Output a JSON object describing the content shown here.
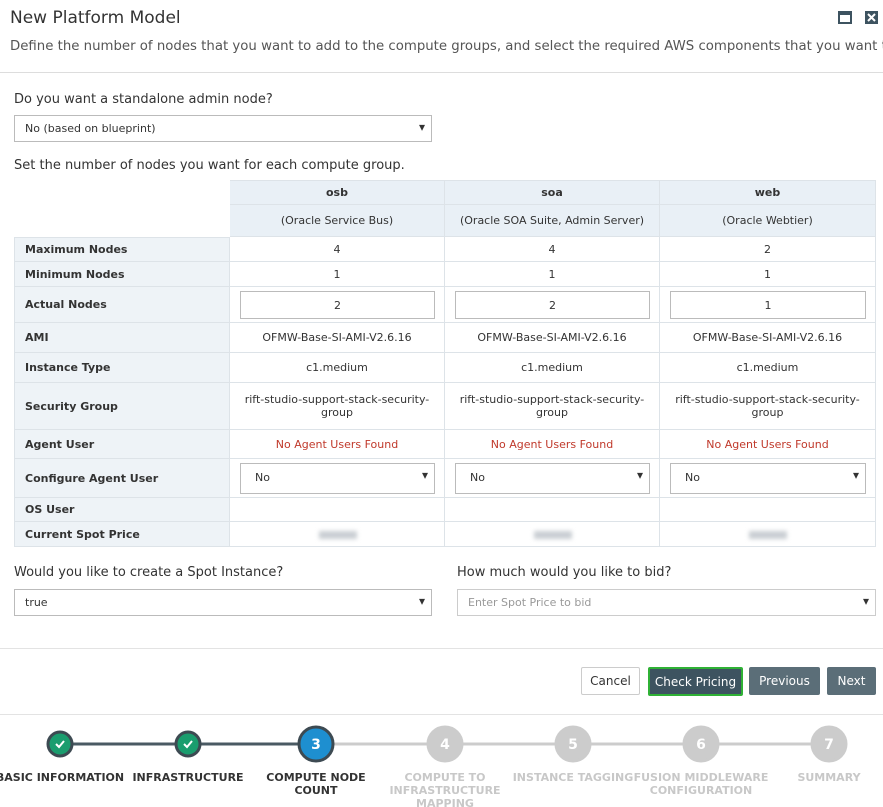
{
  "header": {
    "title": "New Platform Model",
    "description": "Define the number of nodes that you want to add to the compute groups, and select the required AWS components that you want to use."
  },
  "admin_node": {
    "label": "Do you want a standalone admin node?",
    "value": "No (based on blueprint)"
  },
  "groups_label": "Set the number of nodes you want for each compute group.",
  "table": {
    "columns": [
      {
        "name": "osb",
        "description": "(Oracle Service Bus)"
      },
      {
        "name": "soa",
        "description": "(Oracle SOA Suite, Admin Server)"
      },
      {
        "name": "web",
        "description": "(Oracle Webtier)"
      }
    ],
    "rows": [
      {
        "label": "Maximum Nodes",
        "kind": "text",
        "cells": [
          4,
          4,
          2
        ]
      },
      {
        "label": "Minimum Nodes",
        "kind": "text",
        "cells": [
          1,
          1,
          1
        ]
      },
      {
        "label": "Actual Nodes",
        "kind": "input",
        "cells": [
          2,
          2,
          1
        ]
      },
      {
        "label": "AMI",
        "kind": "text",
        "cells": [
          "OFMW-Base-SI-AMI-V2.6.16",
          "OFMW-Base-SI-AMI-V2.6.16",
          "OFMW-Base-SI-AMI-V2.6.16"
        ]
      },
      {
        "label": "Instance Type",
        "kind": "text",
        "cells": [
          "c1.medium",
          "c1.medium",
          "c1.medium"
        ]
      },
      {
        "label": "Security Group",
        "kind": "text",
        "cells": [
          "rift-studio-support-stack-security-group",
          "rift-studio-support-stack-security-group",
          "rift-studio-support-stack-security-group"
        ]
      },
      {
        "label": "Agent User",
        "kind": "warning",
        "cells": [
          "No Agent Users Found",
          "No Agent Users Found",
          "No Agent Users Found"
        ]
      },
      {
        "label": "Configure Agent User",
        "kind": "select",
        "cells": [
          "No",
          "No",
          "No"
        ]
      },
      {
        "label": "OS User",
        "kind": "empty"
      },
      {
        "label": "Current Spot Price",
        "kind": "blurred"
      }
    ]
  },
  "spot": {
    "label": "Would you like to create a Spot Instance?",
    "value": "true"
  },
  "bid": {
    "label": "How much would you like to bid?",
    "placeholder": "Enter Spot Price to bid"
  },
  "buttons": [
    "Cancel",
    "Check Pricing",
    "Previous",
    "Next"
  ],
  "steps": [
    {
      "label": "BASIC INFORMATION",
      "status": "done"
    },
    {
      "label": "INFRASTRUCTURE",
      "status": "done"
    },
    {
      "number": 3,
      "label": "COMPUTE NODE COUNT",
      "status": "current"
    },
    {
      "number": 4,
      "label": "COMPUTE TO INFRASTRUCTURE MAPPING",
      "status": "todo"
    },
    {
      "number": 5,
      "label": "INSTANCE TAGGING",
      "status": "todo"
    },
    {
      "number": 6,
      "label": "FUSION MIDDLEWARE CONFIGURATION",
      "status": "todo"
    },
    {
      "number": 7,
      "label": "SUMMARY",
      "status": "todo"
    }
  ]
}
